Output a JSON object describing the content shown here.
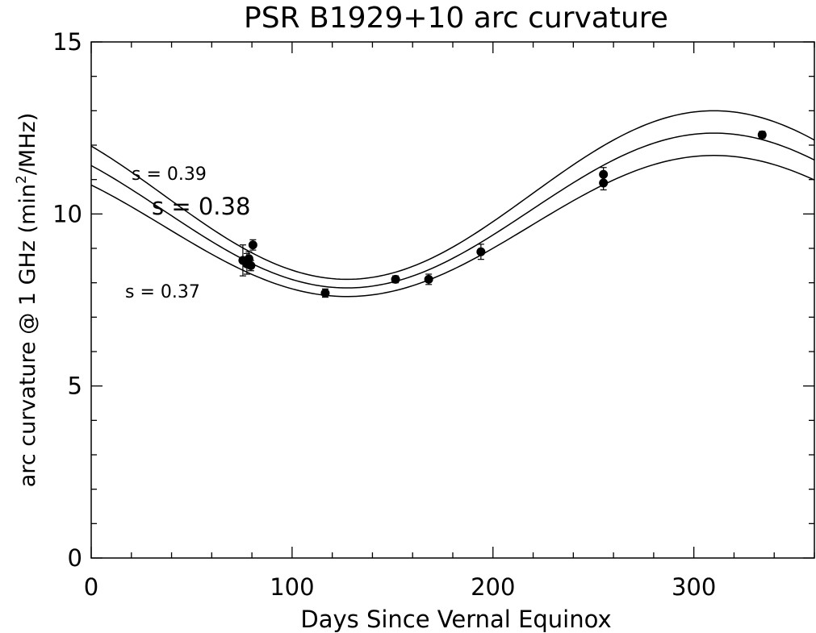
{
  "chart_data": {
    "type": "scatter",
    "title": "PSR B1929+10 arc curvature",
    "xlabel": "Days Since Vernal Equinox",
    "ylabel": {
      "main": "arc curvature @ 1 GHz (min",
      "sup": "2",
      "rest": "/MHz)"
    },
    "xlim": [
      0,
      360
    ],
    "ylim": [
      0,
      15
    ],
    "x_ticks": [
      "0",
      "100",
      "200",
      "300"
    ],
    "y_ticks": [
      "0",
      "5",
      "10",
      "15"
    ],
    "grid": false,
    "points": [
      {
        "x": 75.5,
        "y": 8.65,
        "err": 0.45
      },
      {
        "x": 77.5,
        "y": 8.55,
        "err": 0.3
      },
      {
        "x": 78.5,
        "y": 8.7,
        "err": 0.2
      },
      {
        "x": 79.5,
        "y": 8.5,
        "err": 0.15
      },
      {
        "x": 80.5,
        "y": 9.1,
        "err": 0.15
      },
      {
        "x": 116.5,
        "y": 7.7,
        "err": 0.12
      },
      {
        "x": 151.5,
        "y": 8.1,
        "err": 0.1
      },
      {
        "x": 168,
        "y": 8.1,
        "err": 0.15
      },
      {
        "x": 194,
        "y": 8.9,
        "err": 0.22
      },
      {
        "x": 255,
        "y": 11.15,
        "err": 0.2
      },
      {
        "x": 255,
        "y": 10.9,
        "err": 0.2
      },
      {
        "x": 334,
        "y": 12.3,
        "err": 0.1
      }
    ],
    "curves": [
      {
        "label": "s = 0.39",
        "a": 10.55,
        "b": 2.45,
        "peak": 310
      },
      {
        "label": "s = 0.38",
        "a": 10.1,
        "b": 2.25,
        "peak": 310
      },
      {
        "label": "s = 0.37",
        "a": 9.65,
        "b": 2.05,
        "peak": 310
      }
    ]
  }
}
